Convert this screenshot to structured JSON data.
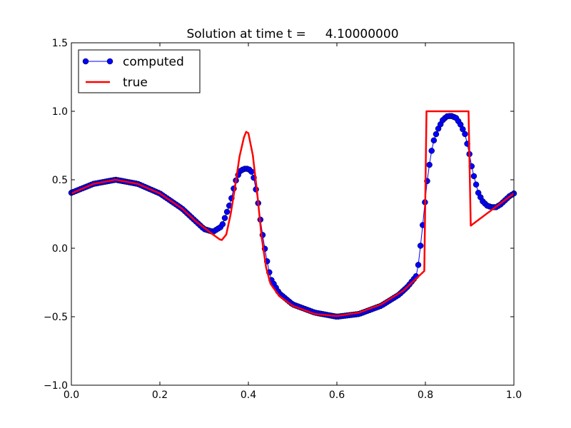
{
  "chart_data": {
    "type": "line",
    "title": "Solution at time t =     4.10000000",
    "xlabel": "",
    "ylabel": "",
    "xlim": [
      0.0,
      1.0
    ],
    "ylim": [
      -1.0,
      1.5
    ],
    "x_ticks": [
      0.0,
      0.2,
      0.4,
      0.6,
      0.8,
      1.0
    ],
    "x_tick_labels": [
      "0.0",
      "0.2",
      "0.4",
      "0.6",
      "0.8",
      "1.0"
    ],
    "y_ticks": [
      -1.0,
      -0.5,
      0.0,
      0.5,
      1.0,
      1.5
    ],
    "y_tick_labels": [
      "−1.0",
      "−0.5",
      "0.0",
      "0.5",
      "1.0",
      "1.5"
    ],
    "grid": false,
    "legend_position": "upper-left",
    "series": [
      {
        "name": "computed",
        "color": "#0000ff",
        "style": "line-with-circle-markers",
        "n_points": 200,
        "profile": [
          [
            0.0,
            0.405
          ],
          [
            0.05,
            0.47
          ],
          [
            0.1,
            0.5
          ],
          [
            0.15,
            0.47
          ],
          [
            0.2,
            0.4
          ],
          [
            0.25,
            0.29
          ],
          [
            0.28,
            0.2
          ],
          [
            0.3,
            0.14
          ],
          [
            0.32,
            0.12
          ],
          [
            0.34,
            0.16
          ],
          [
            0.36,
            0.34
          ],
          [
            0.37,
            0.48
          ],
          [
            0.38,
            0.56
          ],
          [
            0.39,
            0.58
          ],
          [
            0.4,
            0.58
          ],
          [
            0.41,
            0.55
          ],
          [
            0.42,
            0.38
          ],
          [
            0.43,
            0.14
          ],
          [
            0.44,
            -0.06
          ],
          [
            0.45,
            -0.22
          ],
          [
            0.47,
            -0.33
          ],
          [
            0.5,
            -0.41
          ],
          [
            0.55,
            -0.47
          ],
          [
            0.6,
            -0.5
          ],
          [
            0.65,
            -0.48
          ],
          [
            0.7,
            -0.42
          ],
          [
            0.74,
            -0.34
          ],
          [
            0.76,
            -0.28
          ],
          [
            0.78,
            -0.2
          ],
          [
            0.785,
            -0.1
          ],
          [
            0.79,
            0.05
          ],
          [
            0.795,
            0.2
          ],
          [
            0.8,
            0.37
          ],
          [
            0.805,
            0.52
          ],
          [
            0.81,
            0.63
          ],
          [
            0.815,
            0.73
          ],
          [
            0.82,
            0.8
          ],
          [
            0.83,
            0.88
          ],
          [
            0.84,
            0.94
          ],
          [
            0.85,
            0.965
          ],
          [
            0.86,
            0.965
          ],
          [
            0.87,
            0.95
          ],
          [
            0.88,
            0.9
          ],
          [
            0.89,
            0.83
          ],
          [
            0.9,
            0.68
          ],
          [
            0.905,
            0.59
          ],
          [
            0.91,
            0.52
          ],
          [
            0.915,
            0.46
          ],
          [
            0.92,
            0.4
          ],
          [
            0.93,
            0.34
          ],
          [
            0.94,
            0.31
          ],
          [
            0.95,
            0.3
          ],
          [
            0.96,
            0.3
          ],
          [
            0.97,
            0.32
          ],
          [
            0.98,
            0.35
          ],
          [
            0.99,
            0.38
          ],
          [
            1.0,
            0.4
          ]
        ]
      },
      {
        "name": "true",
        "color": "#ff0000",
        "style": "line",
        "n_points": 401,
        "profile": [
          [
            0.0,
            0.4
          ],
          [
            0.05,
            0.47
          ],
          [
            0.1,
            0.5
          ],
          [
            0.15,
            0.47
          ],
          [
            0.2,
            0.4
          ],
          [
            0.25,
            0.29
          ],
          [
            0.28,
            0.2
          ],
          [
            0.3,
            0.15
          ],
          [
            0.32,
            0.1
          ],
          [
            0.335,
            0.065
          ],
          [
            0.34,
            0.06
          ],
          [
            0.35,
            0.1
          ],
          [
            0.36,
            0.25
          ],
          [
            0.37,
            0.45
          ],
          [
            0.38,
            0.67
          ],
          [
            0.39,
            0.81
          ],
          [
            0.395,
            0.85
          ],
          [
            0.4,
            0.84
          ],
          [
            0.41,
            0.68
          ],
          [
            0.42,
            0.4
          ],
          [
            0.43,
            0.08
          ],
          [
            0.44,
            -0.14
          ],
          [
            0.45,
            -0.26
          ],
          [
            0.47,
            -0.35
          ],
          [
            0.5,
            -0.42
          ],
          [
            0.55,
            -0.48
          ],
          [
            0.6,
            -0.495
          ],
          [
            0.65,
            -0.47
          ],
          [
            0.7,
            -0.41
          ],
          [
            0.75,
            -0.31
          ],
          [
            0.7995,
            -0.16
          ],
          [
            0.8005,
            1.0
          ],
          [
            0.8995,
            1.0
          ],
          [
            0.9005,
            0.16
          ],
          [
            0.95,
            0.28
          ],
          [
            1.0,
            0.4
          ]
        ]
      }
    ]
  }
}
